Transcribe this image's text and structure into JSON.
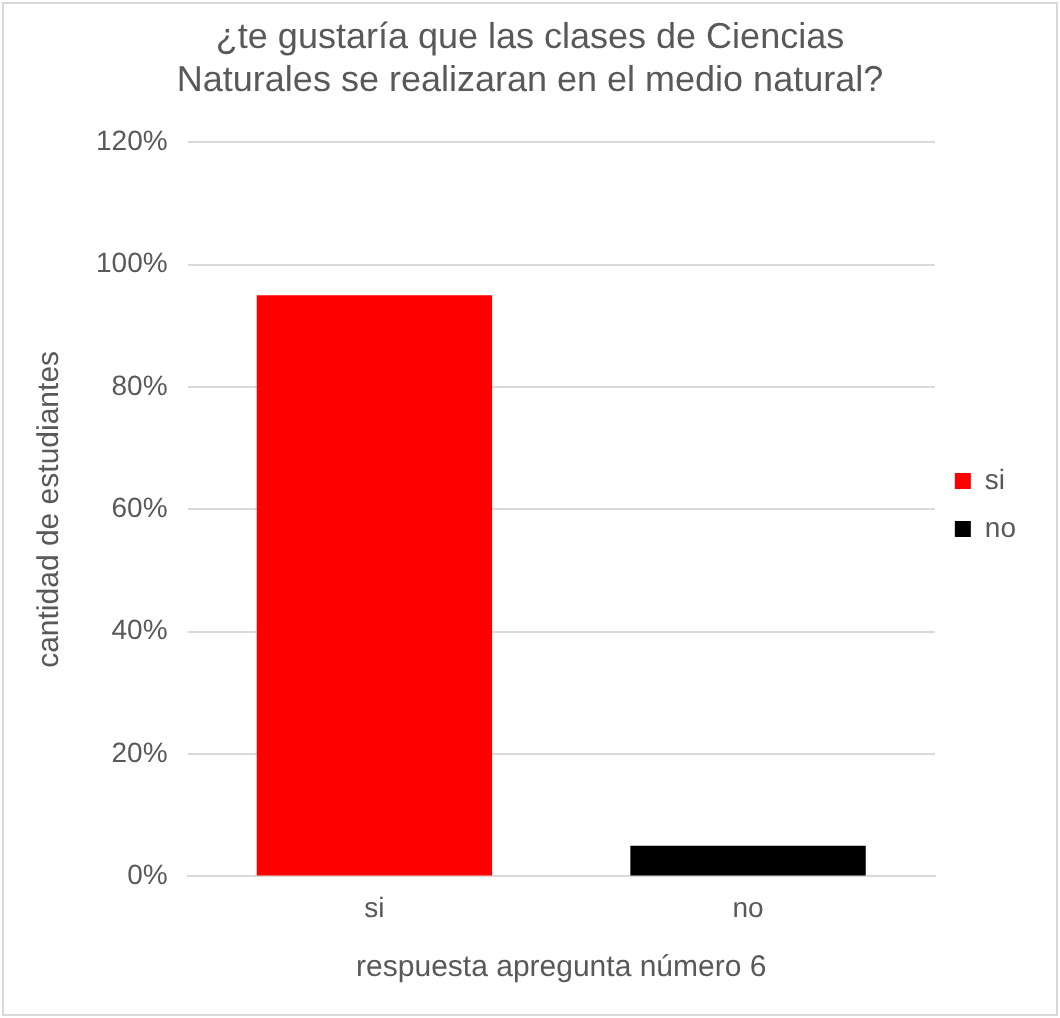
{
  "chart_data": {
    "type": "bar",
    "title": "¿te gustaría que las clases de Ciencias Naturales se realizaran en el medio natural?",
    "xlabel": "respuesta apregunta número 6",
    "ylabel": "cantidad de estudiantes",
    "categories": [
      "si",
      "no"
    ],
    "series": [
      {
        "name": "si",
        "color": "#ff0000",
        "values": [
          95,
          null
        ]
      },
      {
        "name": "no",
        "color": "#000000",
        "values": [
          null,
          5
        ]
      }
    ],
    "ylim": [
      0,
      120
    ],
    "yticks": [
      {
        "value": 0,
        "label": "0%"
      },
      {
        "value": 20,
        "label": "20%"
      },
      {
        "value": 40,
        "label": "40%"
      },
      {
        "value": 60,
        "label": "60%"
      },
      {
        "value": 80,
        "label": "80%"
      },
      {
        "value": 100,
        "label": "100%"
      },
      {
        "value": 120,
        "label": "120%"
      }
    ],
    "grid": "y",
    "legend": "right"
  }
}
